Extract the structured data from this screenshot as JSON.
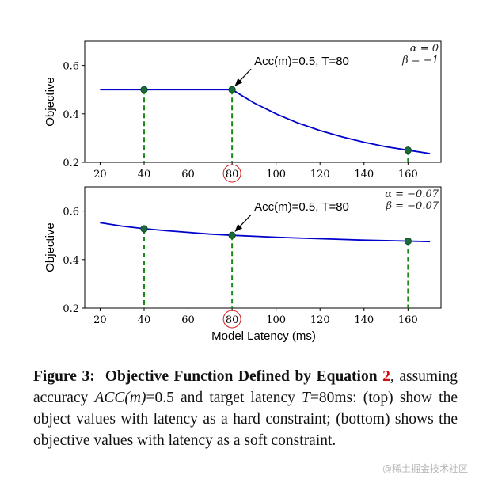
{
  "chart_data": [
    {
      "type": "line",
      "ylabel": "Objective",
      "xlabel": "",
      "xlim": [
        13,
        175
      ],
      "ylim": [
        0.2,
        0.7
      ],
      "xticks": [
        "20",
        "40",
        "60",
        "80",
        "100",
        "120",
        "140",
        "160"
      ],
      "yticks": [
        "0.2",
        "0.4",
        "0.6"
      ],
      "highlighted_tick": "80",
      "curve": {
        "color": "#0000cc",
        "x": [
          20,
          30,
          40,
          50,
          60,
          70,
          80,
          90,
          100,
          110,
          120,
          130,
          140,
          150,
          160,
          170
        ],
        "y": [
          0.5,
          0.5,
          0.5,
          0.5,
          0.5,
          0.5,
          0.5,
          0.445,
          0.4,
          0.362,
          0.331,
          0.305,
          0.283,
          0.264,
          0.25,
          0.236
        ]
      },
      "markers": {
        "color": "#1a6b3a",
        "x": [
          40,
          80,
          160
        ],
        "y": [
          0.5,
          0.5,
          0.25
        ]
      },
      "annotation": {
        "text": "Acc(m)=0.5, T=80",
        "x": 80,
        "y": 0.5
      },
      "params": [
        "α = 0",
        "β = −1"
      ]
    },
    {
      "type": "line",
      "ylabel": "Objective",
      "xlabel": "Model Latency (ms)",
      "xlim": [
        13,
        175
      ],
      "ylim": [
        0.2,
        0.7
      ],
      "xticks": [
        "20",
        "40",
        "60",
        "80",
        "100",
        "120",
        "140",
        "160"
      ],
      "yticks": [
        "0.2",
        "0.4",
        "0.6"
      ],
      "highlighted_tick": "80",
      "curve": {
        "color": "#0000cc",
        "x": [
          20,
          30,
          40,
          50,
          60,
          70,
          80,
          90,
          100,
          110,
          120,
          130,
          140,
          150,
          160,
          170
        ],
        "y": [
          0.552,
          0.538,
          0.527,
          0.519,
          0.512,
          0.505,
          0.5,
          0.496,
          0.492,
          0.489,
          0.486,
          0.483,
          0.48,
          0.478,
          0.476,
          0.474
        ]
      },
      "markers": {
        "color": "#1a6b3a",
        "x": [
          40,
          80,
          160
        ],
        "y": [
          0.527,
          0.5,
          0.476
        ]
      },
      "annotation": {
        "text": "Acc(m)=0.5, T=80",
        "x": 80,
        "y": 0.5
      },
      "params": [
        "α = −0.07",
        "β = −0.07"
      ]
    }
  ],
  "caption": {
    "label": "Figure 3:",
    "title": "Objective Function Defined by Equation",
    "ref": "2",
    "part1": ", assuming accuracy ",
    "acc_symbol": "ACC(m)",
    "part2": "=0.5 and target latency ",
    "t_symbol": "T",
    "part3": "=80ms: (top) show the object values with latency as a hard constraint; (bottom) shows the objective values with latency as a soft constraint."
  },
  "watermark": "@稀土掘金技术社区"
}
